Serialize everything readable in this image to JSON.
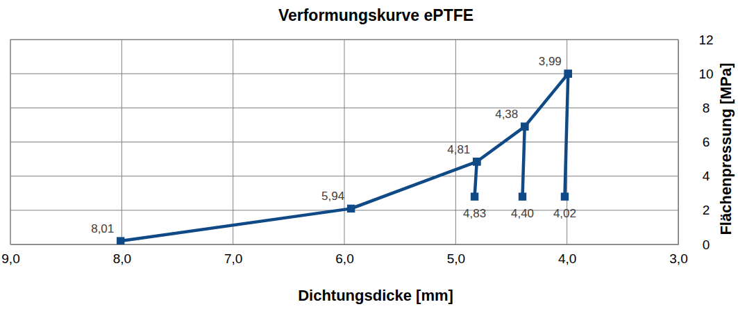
{
  "chart_data": {
    "type": "line",
    "title": "Verformungskurve ePTFE",
    "x_label": "Dichtungsdicke [mm]",
    "y_label": "Flächenpressung [MPa]",
    "xlim": [
      9,
      3
    ],
    "xticks": [
      {
        "value": 9,
        "label": "9,0"
      },
      {
        "value": 8,
        "label": "8,0"
      },
      {
        "value": 7,
        "label": "7,0"
      },
      {
        "value": 6,
        "label": "6,0"
      },
      {
        "value": 5,
        "label": "5,0"
      },
      {
        "value": 4,
        "label": "4,0"
      },
      {
        "value": 3,
        "label": "3,0"
      }
    ],
    "ylim": [
      0,
      12
    ],
    "yticks": [
      0,
      2,
      4,
      6,
      8,
      10,
      12
    ],
    "grid": true,
    "color": "#0f4a87",
    "marker": "square",
    "line_style": "solid",
    "series": [
      {
        "x": [
          8.01,
          5.94,
          4.81,
          4.38,
          3.99
        ],
        "values": [
          0.2,
          2.1,
          4.85,
          6.9,
          10.0
        ],
        "x_labels": [
          "8,01",
          "5,94",
          "4,81",
          "4,38",
          "3,99"
        ]
      },
      {
        "x": [
          4.81,
          4.83
        ],
        "values": [
          4.85,
          2.8
        ],
        "x_labels": [
          null,
          "4,83"
        ]
      },
      {
        "x": [
          4.38,
          4.4
        ],
        "values": [
          6.9,
          2.8
        ],
        "x_labels": [
          null,
          "4,40"
        ]
      },
      {
        "x": [
          3.99,
          4.02
        ],
        "values": [
          10.0,
          2.8
        ],
        "x_labels": [
          null,
          "4,02"
        ]
      }
    ]
  }
}
